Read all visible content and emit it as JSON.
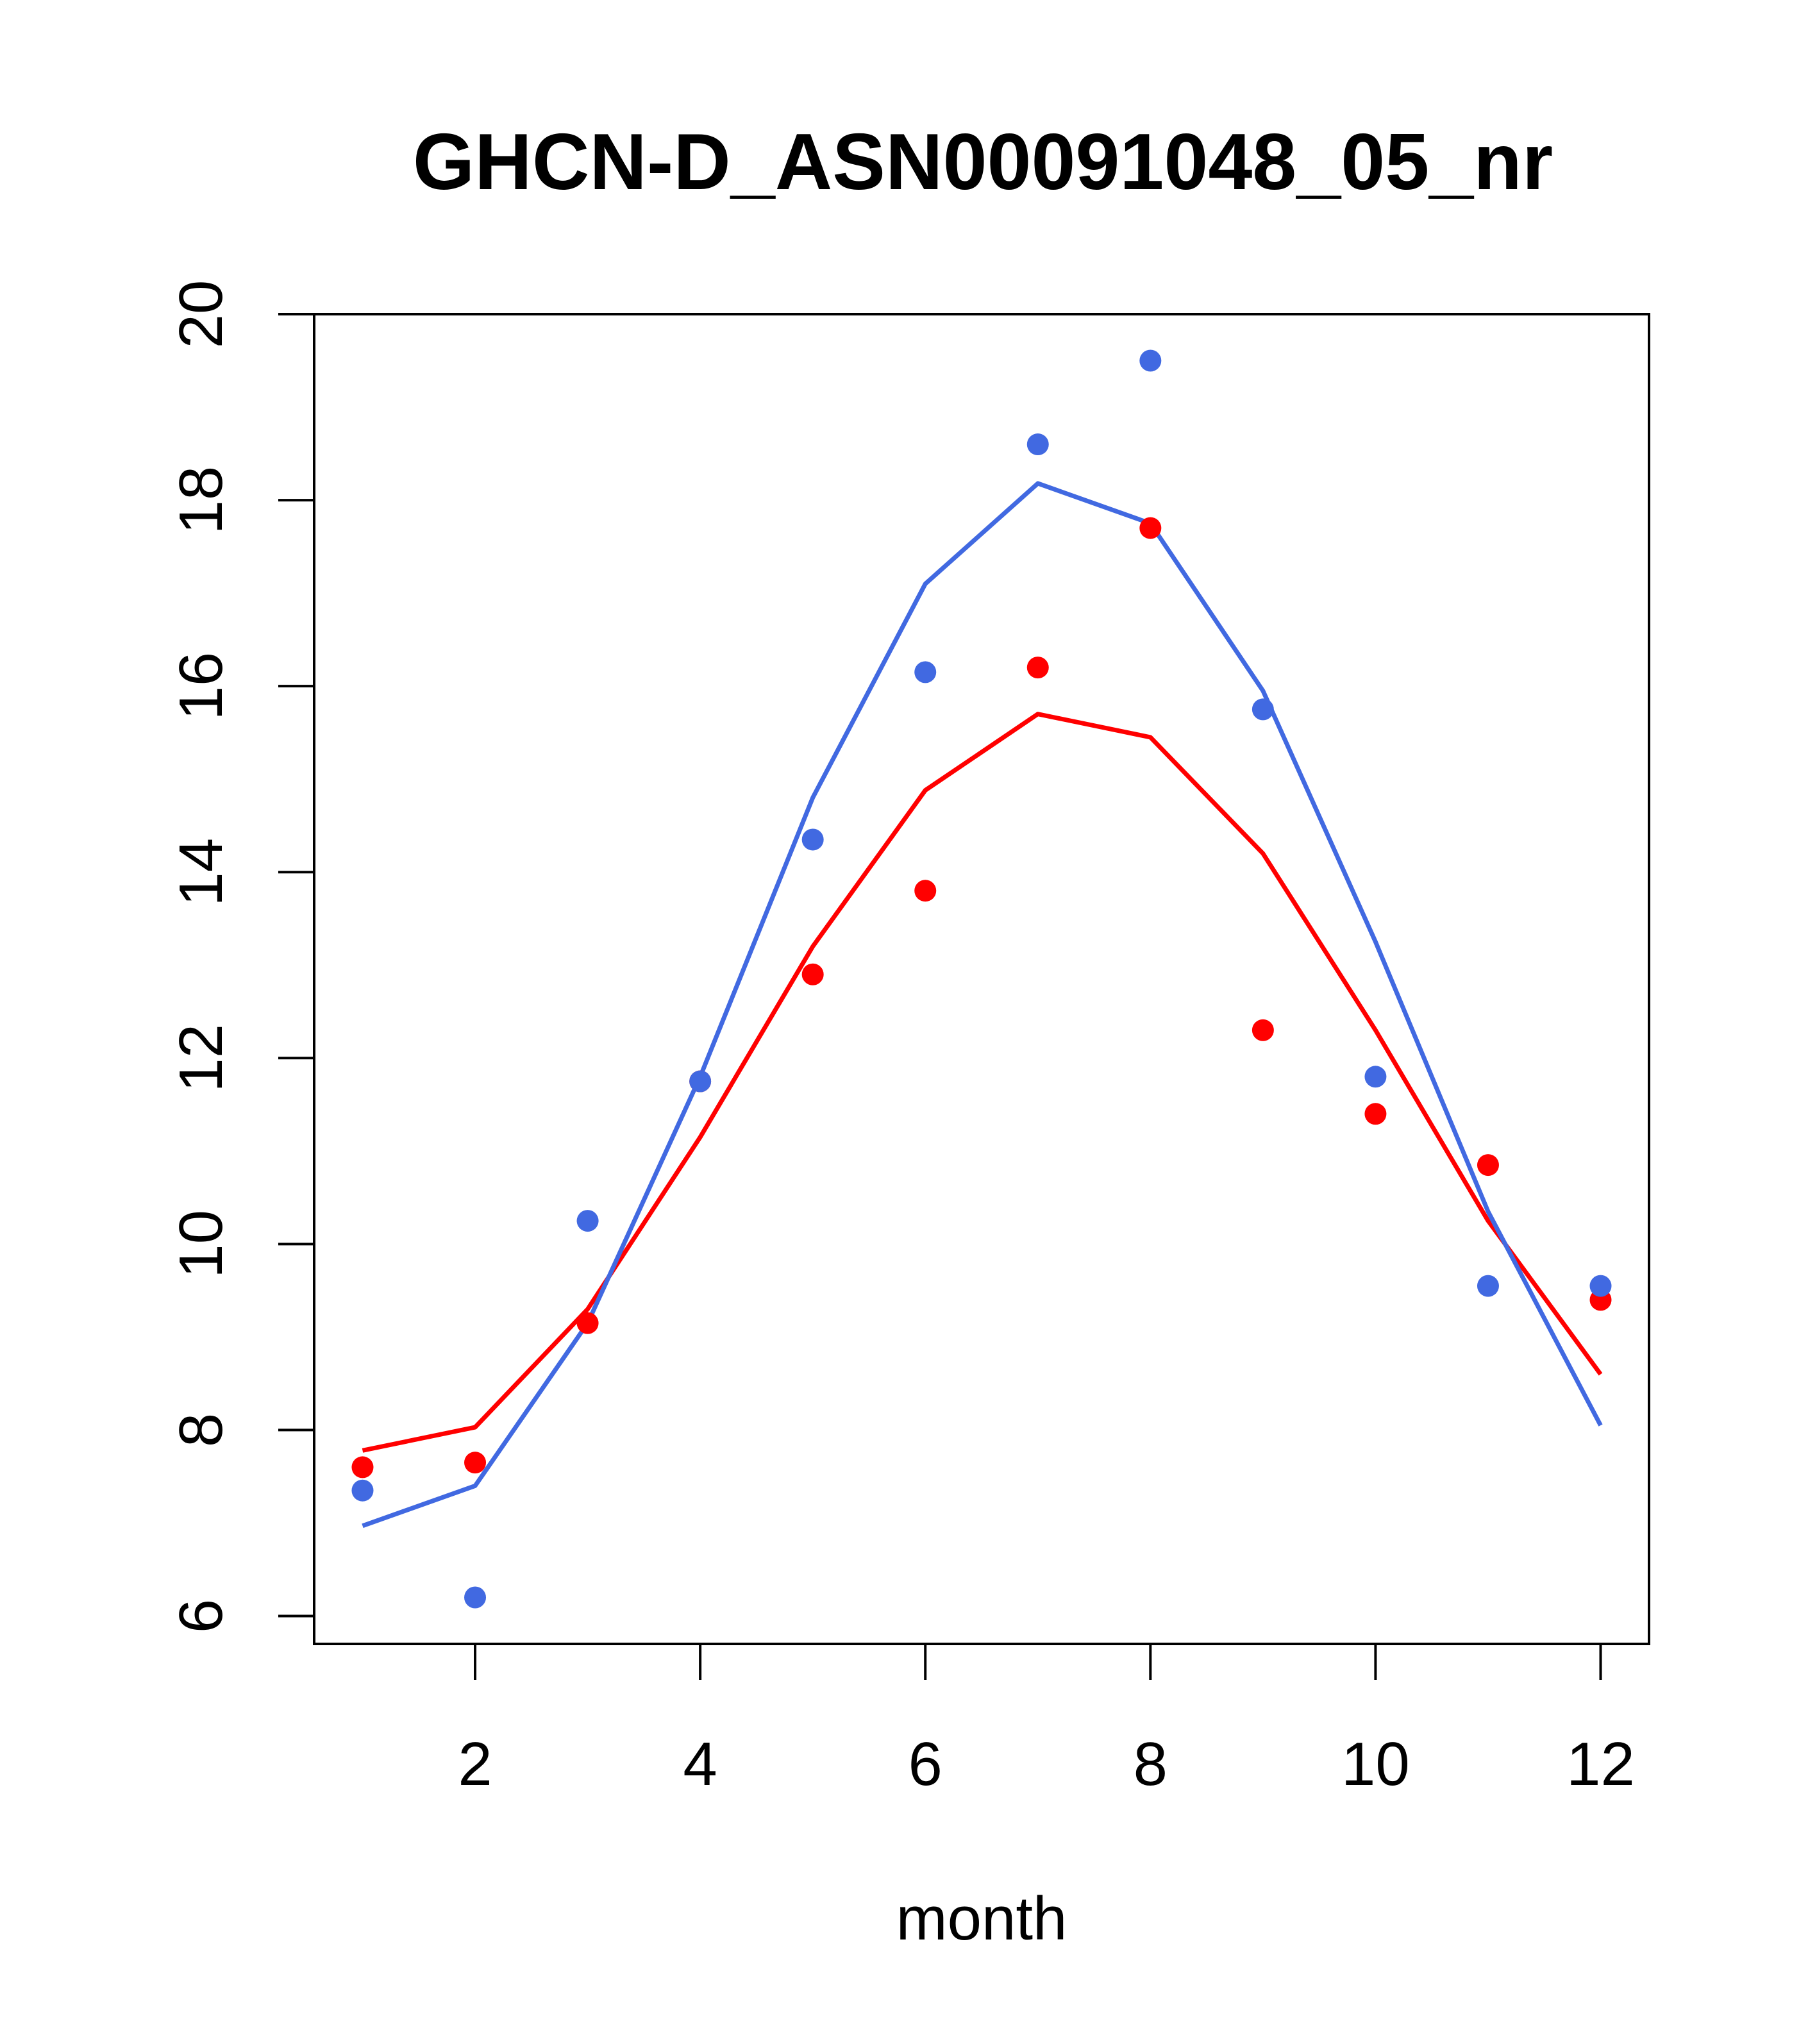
{
  "chart_data": {
    "type": "scatter",
    "title": "GHCN-D_ASN00091048_05_nr",
    "xlabel": "month",
    "ylabel": "",
    "xlim": [
      0.57,
      12.43
    ],
    "ylim": [
      5.7,
      20.0
    ],
    "xticks": [
      2,
      4,
      6,
      8,
      10,
      12
    ],
    "yticks": [
      6,
      8,
      10,
      12,
      14,
      16,
      18,
      20
    ],
    "grid": false,
    "legend": "none",
    "series": [
      {
        "kind": "points",
        "color": "#ff0000",
        "x": [
          1,
          2,
          3,
          4,
          5,
          6,
          7,
          8,
          9,
          10,
          11,
          12
        ],
        "y": [
          7.6,
          7.65,
          9.15,
          11.75,
          12.9,
          13.8,
          16.2,
          17.7,
          12.3,
          11.4,
          10.85,
          9.4
        ]
      },
      {
        "kind": "points",
        "color": "#4169e1",
        "x": [
          1,
          2,
          3,
          4,
          5,
          6,
          7,
          8,
          9,
          10,
          11,
          12
        ],
        "y": [
          7.35,
          6.2,
          10.25,
          11.75,
          14.35,
          16.15,
          18.6,
          19.5,
          15.75,
          11.8,
          9.55,
          9.55
        ]
      },
      {
        "kind": "line",
        "color": "#ff0000",
        "x": [
          1,
          2,
          3,
          4,
          5,
          6,
          7,
          8,
          9,
          10,
          11,
          12
        ],
        "y": [
          7.78,
          8.03,
          9.3,
          11.15,
          13.2,
          14.88,
          15.7,
          15.45,
          14.2,
          12.3,
          10.25,
          8.6
        ]
      },
      {
        "kind": "line",
        "color": "#4169e1",
        "x": [
          1,
          2,
          3,
          4,
          5,
          6,
          7,
          8,
          9,
          10,
          11,
          12
        ],
        "y": [
          6.97,
          7.4,
          9.15,
          11.8,
          14.8,
          17.1,
          18.18,
          17.75,
          15.95,
          13.25,
          10.35,
          8.05
        ]
      }
    ]
  }
}
